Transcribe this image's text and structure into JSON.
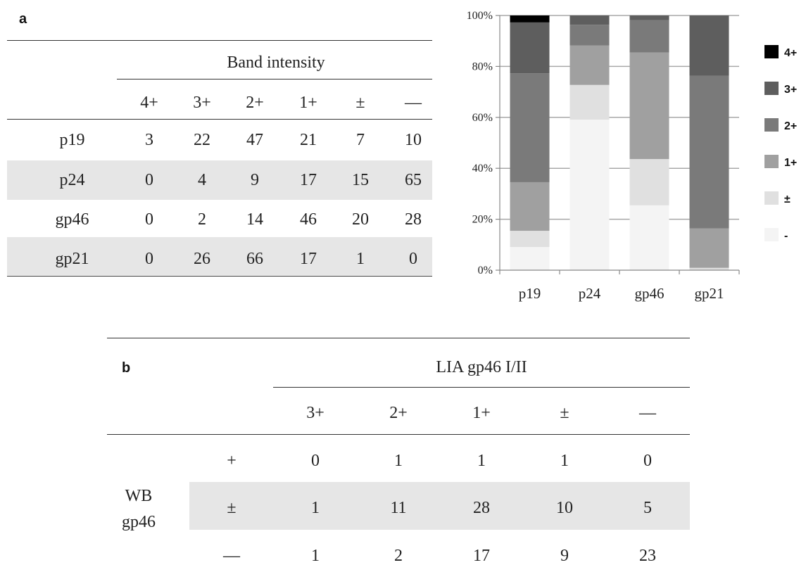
{
  "panel_a_label": "a",
  "panel_b_label": "b",
  "table_a": {
    "group_header": "Band intensity",
    "columns": [
      "4+",
      "3+",
      "2+",
      "1+",
      "±",
      "—"
    ],
    "rows": [
      {
        "label": "p19",
        "values": [
          "3",
          "22",
          "47",
          "21",
          "7",
          "10"
        ]
      },
      {
        "label": "p24",
        "values": [
          "0",
          "4",
          "9",
          "17",
          "15",
          "65"
        ]
      },
      {
        "label": "gp46",
        "values": [
          "0",
          "2",
          "14",
          "46",
          "20",
          "28"
        ]
      },
      {
        "label": "gp21",
        "values": [
          "0",
          "26",
          "66",
          "17",
          "1",
          "0"
        ]
      }
    ]
  },
  "chart_data": {
    "type": "bar",
    "stacked": true,
    "percent": true,
    "categories": [
      "p19",
      "p24",
      "gp46",
      "gp21"
    ],
    "series": [
      {
        "name": "-",
        "values": [
          10,
          65,
          28,
          0
        ],
        "color": "#f4f4f4"
      },
      {
        "name": "±",
        "values": [
          7,
          15,
          20,
          1
        ],
        "color": "#e0e0e0"
      },
      {
        "name": "1+",
        "values": [
          21,
          17,
          46,
          17
        ],
        "color": "#a0a0a0"
      },
      {
        "name": "2+",
        "values": [
          47,
          9,
          14,
          66
        ],
        "color": "#7a7a7a"
      },
      {
        "name": "3+",
        "values": [
          22,
          4,
          2,
          26
        ],
        "color": "#5e5e5e"
      },
      {
        "name": "4+",
        "values": [
          3,
          0,
          0,
          0
        ],
        "color": "#000000"
      }
    ],
    "ylim": [
      0,
      100
    ],
    "yticks": [
      "0%",
      "20%",
      "40%",
      "60%",
      "80%",
      "100%"
    ],
    "grid": true,
    "legend_position": "right",
    "legend_order": [
      "4+",
      "3+",
      "2+",
      "1+",
      "±",
      "-"
    ]
  },
  "table_b": {
    "group_header": "LIA gp46 I/II",
    "columns": [
      "3+",
      "2+",
      "1+",
      "±",
      "—"
    ],
    "row_group_label_line1": "WB",
    "row_group_label_line2": "gp46",
    "rows": [
      {
        "label": "+",
        "values": [
          "0",
          "1",
          "1",
          "1",
          "0"
        ]
      },
      {
        "label": "±",
        "values": [
          "1",
          "11",
          "28",
          "10",
          "5"
        ]
      },
      {
        "label": "—",
        "values": [
          "1",
          "2",
          "17",
          "9",
          "23"
        ]
      }
    ]
  }
}
